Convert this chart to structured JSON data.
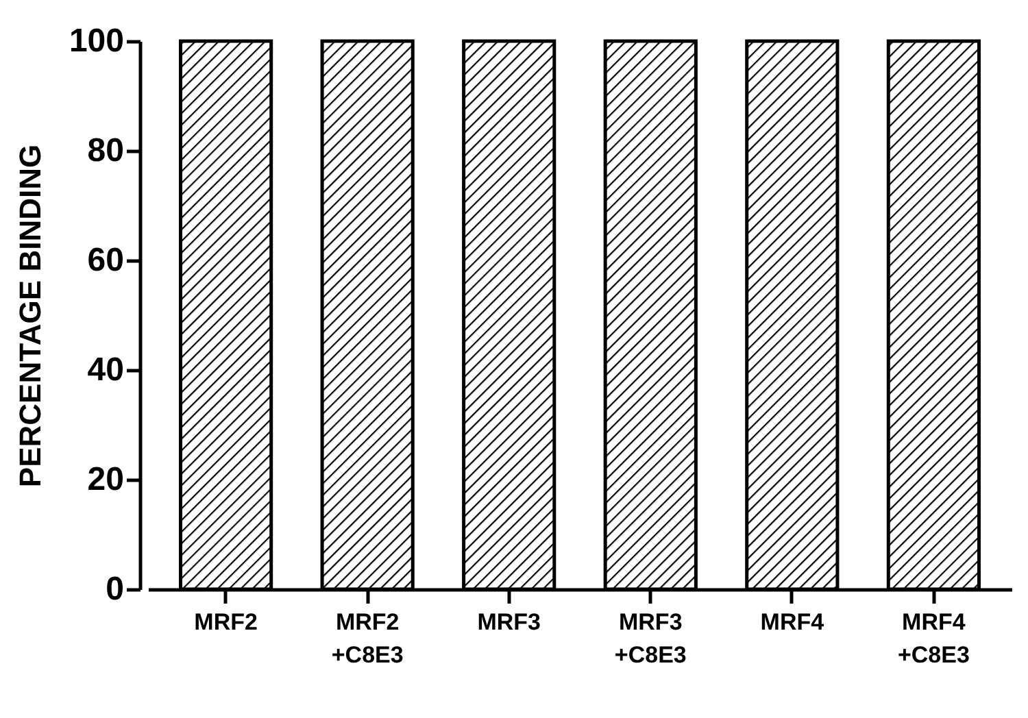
{
  "chart_data": {
    "type": "bar",
    "ylabel": "PERCENTAGE  BINDING",
    "categories": [
      "MRF2",
      "MRF2 +C8E3",
      "MRF3",
      "MRF3 +C8E3",
      "MRF4",
      "MRF4 +C8E3"
    ],
    "values": [
      100,
      100,
      100,
      100,
      100,
      100
    ],
    "color": "#000000",
    "ylim": [
      0,
      100
    ],
    "yticks": [
      0,
      20,
      40,
      60,
      80,
      100
    ],
    "grid": false
  }
}
